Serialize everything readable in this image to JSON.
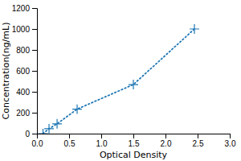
{
  "chart_data": {
    "type": "line",
    "xlabel": "Optical Density",
    "ylabel": "Concentration(ng/mL)",
    "x": [
      0.094,
      0.188,
      0.313,
      0.625,
      1.5,
      2.45
    ],
    "values": [
      0,
      46.9,
      93.8,
      234,
      469,
      1000
    ],
    "marker": "plus",
    "line_style": "dotted",
    "xlim": [
      0,
      3
    ],
    "ylim": [
      0,
      1200
    ],
    "xticks": [
      {
        "value": 0,
        "label": "0.0"
      },
      {
        "value": 0.5,
        "label": "0.5"
      },
      {
        "value": 1,
        "label": "1.0"
      },
      {
        "value": 1.5,
        "label": "1.5"
      },
      {
        "value": 2,
        "label": "2.0"
      },
      {
        "value": 2.5,
        "label": "2.5"
      },
      {
        "value": 3,
        "label": "3.0"
      }
    ],
    "yticks": [
      0,
      200,
      400,
      600,
      800,
      1000,
      1200
    ]
  }
}
